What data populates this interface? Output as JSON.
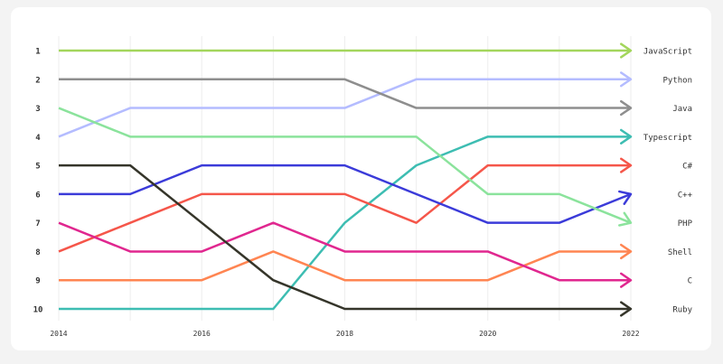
{
  "chart_data": {
    "type": "line",
    "subtype": "bump",
    "x": [
      2014,
      2015,
      2016,
      2017,
      2018,
      2019,
      2020,
      2021,
      2022
    ],
    "x_tick_labels": [
      "2014",
      "2016",
      "2018",
      "2020",
      "2022"
    ],
    "y_tick_labels": [
      "1",
      "2",
      "3",
      "4",
      "5",
      "6",
      "7",
      "8",
      "9",
      "10"
    ],
    "ylim": [
      1,
      10
    ],
    "y_inverted": true,
    "grid": "vertical",
    "series": [
      {
        "name": "JavaScript",
        "color": "#a3d65c",
        "values": [
          1,
          1,
          1,
          1,
          1,
          1,
          1,
          1,
          1
        ]
      },
      {
        "name": "Python",
        "color": "#b4bcff",
        "values": [
          4,
          3,
          3,
          3,
          3,
          2,
          2,
          2,
          2
        ]
      },
      {
        "name": "Java",
        "color": "#8e8e8e",
        "values": [
          2,
          2,
          2,
          2,
          2,
          3,
          3,
          3,
          3
        ]
      },
      {
        "name": "Typescript",
        "color": "#3dbdb2",
        "values": [
          10,
          10,
          10,
          10,
          7,
          5,
          4,
          4,
          4
        ]
      },
      {
        "name": "C#",
        "color": "#f5564a",
        "values": [
          8,
          7,
          6,
          6,
          6,
          7,
          5,
          5,
          5
        ]
      },
      {
        "name": "C++",
        "color": "#3b3bd9",
        "values": [
          6,
          6,
          5,
          5,
          5,
          6,
          7,
          7,
          6
        ]
      },
      {
        "name": "PHP",
        "color": "#8be39c",
        "values": [
          3,
          4,
          4,
          4,
          4,
          4,
          6,
          6,
          7
        ]
      },
      {
        "name": "Shell",
        "color": "#ff8552",
        "values": [
          9,
          9,
          9,
          8,
          9,
          9,
          9,
          8,
          8
        ]
      },
      {
        "name": "C",
        "color": "#e0278f",
        "values": [
          7,
          8,
          8,
          7,
          8,
          8,
          8,
          9,
          9
        ]
      },
      {
        "name": "Ruby",
        "color": "#35352a",
        "values": [
          5,
          5,
          7,
          9,
          10,
          10,
          10,
          10,
          10
        ]
      }
    ]
  }
}
